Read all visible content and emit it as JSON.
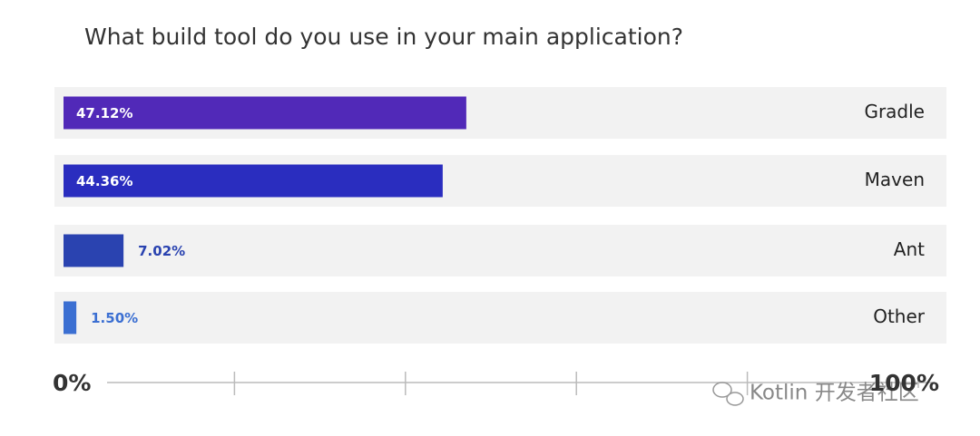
{
  "chart_data": {
    "type": "bar",
    "orientation": "horizontal",
    "title": "What build tool do you use in your main application?",
    "categories": [
      "Gradle",
      "Maven",
      "Ant",
      "Other"
    ],
    "values": [
      47.12,
      44.36,
      7.02,
      1.5
    ],
    "value_labels": [
      "47.12%",
      "44.36%",
      "7.02%",
      "1.50%"
    ],
    "colors": [
      "#5129b8",
      "#2a2dbf",
      "#2a43b0",
      "#3b6fd2"
    ],
    "xlim": [
      0,
      100
    ],
    "xticks": [
      {
        "value": 0,
        "label": "0%"
      },
      {
        "value": 100,
        "label": "100%"
      }
    ],
    "minor_xticks": [
      20,
      40,
      60,
      80
    ],
    "watermark": "Kotlin 开发者社区"
  }
}
